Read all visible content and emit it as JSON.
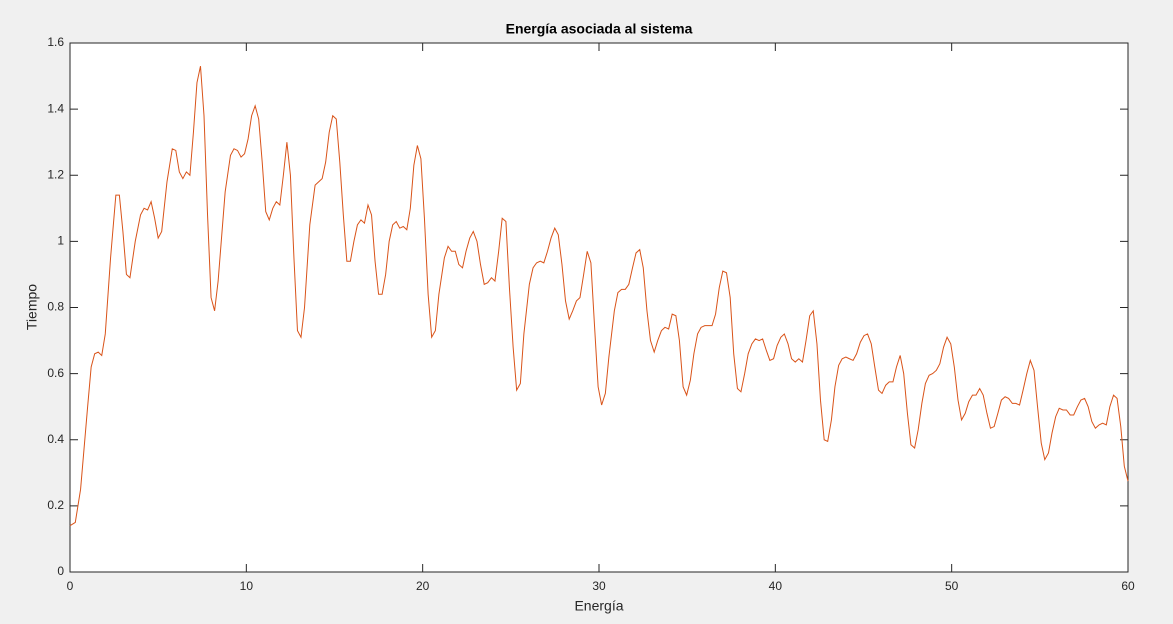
{
  "chart_data": {
    "type": "line",
    "title": "Energía asociada al sistema",
    "x_label": "Energía",
    "y_label": "Tiempo",
    "color": "#d95319",
    "xlim": [
      0,
      60
    ],
    "ylim": [
      0,
      1.6
    ],
    "xticks": [
      0,
      10,
      20,
      30,
      40,
      50,
      60
    ],
    "yticks": [
      0,
      0.2,
      0.4,
      0.6,
      0.8,
      1,
      1.2,
      1.4,
      1.6
    ],
    "grid": false,
    "x": [
      0,
      0.3,
      0.6,
      1.0,
      1.2,
      1.4,
      1.6,
      1.8,
      2.0,
      2.3,
      2.6,
      2.8,
      3.0,
      3.2,
      3.4,
      3.7,
      4.0,
      4.2,
      4.4,
      4.6,
      4.8,
      5.0,
      5.2,
      5.5,
      5.8,
      6.0,
      6.2,
      6.4,
      6.6,
      6.8,
      7.0,
      7.2,
      7.4,
      7.6,
      7.8,
      8.0,
      8.2,
      8.4,
      8.8,
      9.1,
      9.3,
      9.5,
      9.7,
      9.9,
      10.1,
      10.3,
      10.5,
      10.7,
      10.9,
      11.1,
      11.3,
      11.5,
      11.7,
      11.9,
      12.1,
      12.3,
      12.5,
      12.7,
      12.9,
      13.1,
      13.3,
      13.6,
      13.9,
      14.1,
      14.3,
      14.5,
      14.7,
      14.9,
      15.1,
      15.3,
      15.5,
      15.7,
      15.9,
      16.1,
      16.3,
      16.5,
      16.7,
      16.9,
      17.1,
      17.3,
      17.5,
      17.7,
      17.9,
      18.1,
      18.3,
      18.5,
      18.7,
      18.9,
      19.1,
      19.3,
      19.5,
      19.7,
      19.9,
      20.1,
      20.31,
      20.51,
      20.72,
      20.92,
      21.23,
      21.44,
      21.64,
      21.85,
      22.05,
      22.26,
      22.46,
      22.67,
      22.87,
      23.08,
      23.28,
      23.49,
      23.69,
      23.9,
      24.1,
      24.31,
      24.51,
      24.72,
      24.92,
      25.13,
      25.33,
      25.54,
      25.74,
      26.05,
      26.26,
      26.46,
      26.67,
      26.87,
      27.08,
      27.28,
      27.49,
      27.69,
      27.9,
      28.1,
      28.31,
      28.51,
      28.72,
      28.92,
      29.13,
      29.33,
      29.54,
      29.74,
      29.95,
      30.15,
      30.36,
      30.56,
      30.87,
      31.07,
      31.28,
      31.49,
      31.69,
      31.9,
      32.1,
      32.31,
      32.51,
      32.72,
      32.92,
      33.13,
      33.33,
      33.54,
      33.74,
      33.95,
      34.15,
      34.36,
      34.56,
      34.77,
      34.97,
      35.18,
      35.38,
      35.59,
      35.79,
      36.0,
      36.2,
      36.41,
      36.61,
      36.82,
      37.02,
      37.23,
      37.44,
      37.64,
      37.85,
      38.05,
      38.26,
      38.46,
      38.67,
      38.87,
      39.08,
      39.28,
      39.49,
      39.69,
      39.9,
      40.1,
      40.31,
      40.51,
      40.72,
      40.92,
      41.13,
      41.33,
      41.54,
      41.74,
      41.95,
      42.15,
      42.36,
      42.56,
      42.77,
      42.97,
      43.18,
      43.38,
      43.59,
      43.79,
      44.0,
      44.2,
      44.41,
      44.61,
      44.82,
      45.03,
      45.23,
      45.44,
      45.64,
      45.85,
      46.05,
      46.26,
      46.46,
      46.67,
      46.87,
      47.08,
      47.28,
      47.49,
      47.69,
      47.9,
      48.1,
      48.31,
      48.51,
      48.72,
      48.92,
      49.13,
      49.33,
      49.54,
      49.74,
      49.95,
      50.15,
      50.36,
      50.56,
      50.77,
      50.97,
      51.18,
      51.38,
      51.59,
      51.79,
      52.0,
      52.2,
      52.41,
      52.62,
      52.82,
      53.03,
      53.23,
      53.44,
      53.64,
      53.85,
      54.05,
      54.26,
      54.46,
      54.67,
      54.87,
      55.08,
      55.28,
      55.49,
      55.69,
      55.9,
      56.1,
      56.31,
      56.51,
      56.72,
      56.92,
      57.13,
      57.33,
      57.54,
      57.74,
      57.95,
      58.15,
      58.36,
      58.56,
      58.77,
      58.97,
      59.18,
      59.38,
      59.59,
      59.79,
      60
    ],
    "values": [
      0.14,
      0.15,
      0.25,
      0.5,
      0.62,
      0.66,
      0.665,
      0.655,
      0.72,
      0.95,
      1.14,
      1.14,
      1.03,
      0.9,
      0.89,
      1.0,
      1.08,
      1.1,
      1.095,
      1.12,
      1.07,
      1.01,
      1.03,
      1.18,
      1.28,
      1.275,
      1.21,
      1.19,
      1.21,
      1.2,
      1.33,
      1.48,
      1.53,
      1.38,
      1.08,
      0.83,
      0.79,
      0.88,
      1.15,
      1.26,
      1.28,
      1.275,
      1.255,
      1.265,
      1.31,
      1.38,
      1.41,
      1.37,
      1.24,
      1.09,
      1.065,
      1.1,
      1.12,
      1.11,
      1.2,
      1.3,
      1.2,
      0.95,
      0.73,
      0.71,
      0.8,
      1.05,
      1.17,
      1.18,
      1.19,
      1.24,
      1.33,
      1.38,
      1.37,
      1.24,
      1.08,
      0.94,
      0.94,
      1.0,
      1.05,
      1.065,
      1.055,
      1.11,
      1.08,
      0.94,
      0.84,
      0.84,
      0.9,
      1.0,
      1.05,
      1.06,
      1.04,
      1.045,
      1.035,
      1.1,
      1.23,
      1.29,
      1.25,
      1.07,
      0.84,
      0.71,
      0.73,
      0.84,
      0.95,
      0.985,
      0.97,
      0.97,
      0.93,
      0.92,
      0.97,
      1.01,
      1.03,
      1.0,
      0.93,
      0.87,
      0.875,
      0.89,
      0.88,
      0.97,
      1.07,
      1.06,
      0.86,
      0.68,
      0.55,
      0.57,
      0.72,
      0.87,
      0.92,
      0.935,
      0.94,
      0.935,
      0.97,
      1.01,
      1.04,
      1.02,
      0.93,
      0.82,
      0.765,
      0.79,
      0.82,
      0.83,
      0.9,
      0.97,
      0.935,
      0.75,
      0.56,
      0.505,
      0.54,
      0.65,
      0.79,
      0.845,
      0.855,
      0.855,
      0.87,
      0.92,
      0.965,
      0.975,
      0.92,
      0.79,
      0.7,
      0.665,
      0.7,
      0.73,
      0.74,
      0.735,
      0.78,
      0.775,
      0.7,
      0.56,
      0.535,
      0.58,
      0.66,
      0.72,
      0.74,
      0.745,
      0.745,
      0.745,
      0.78,
      0.86,
      0.91,
      0.905,
      0.83,
      0.66,
      0.555,
      0.545,
      0.6,
      0.66,
      0.69,
      0.705,
      0.7,
      0.705,
      0.67,
      0.64,
      0.645,
      0.685,
      0.71,
      0.72,
      0.69,
      0.645,
      0.635,
      0.645,
      0.635,
      0.7,
      0.775,
      0.79,
      0.69,
      0.52,
      0.4,
      0.395,
      0.46,
      0.56,
      0.625,
      0.645,
      0.65,
      0.645,
      0.64,
      0.66,
      0.695,
      0.715,
      0.72,
      0.69,
      0.62,
      0.55,
      0.54,
      0.565,
      0.575,
      0.575,
      0.62,
      0.655,
      0.6,
      0.48,
      0.385,
      0.375,
      0.43,
      0.51,
      0.57,
      0.595,
      0.6,
      0.61,
      0.63,
      0.68,
      0.71,
      0.69,
      0.62,
      0.52,
      0.46,
      0.48,
      0.515,
      0.535,
      0.535,
      0.555,
      0.535,
      0.48,
      0.435,
      0.44,
      0.48,
      0.52,
      0.53,
      0.525,
      0.51,
      0.51,
      0.505,
      0.55,
      0.6,
      0.64,
      0.61,
      0.5,
      0.39,
      0.34,
      0.36,
      0.42,
      0.47,
      0.495,
      0.49,
      0.49,
      0.475,
      0.475,
      0.5,
      0.52,
      0.525,
      0.5,
      0.455,
      0.435,
      0.445,
      0.45,
      0.445,
      0.5,
      0.535,
      0.525,
      0.44,
      0.32,
      0.275
    ]
  }
}
